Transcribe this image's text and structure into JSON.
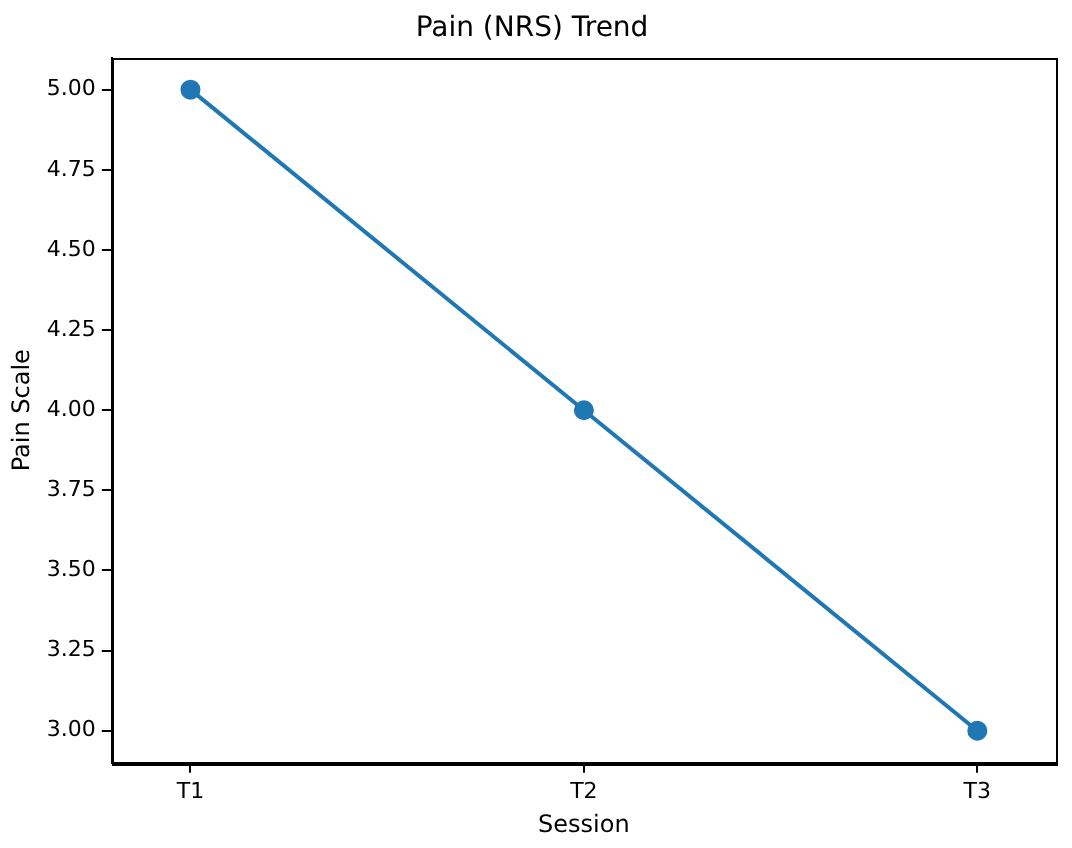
{
  "chart_data": {
    "type": "line",
    "title": "Pain (NRS) Trend",
    "xlabel": "Session",
    "ylabel": "Pain Scale",
    "categories": [
      "T1",
      "T2",
      "T3"
    ],
    "series": [
      {
        "color": "#1f77b4",
        "values": [
          5,
          4,
          3
        ]
      }
    ],
    "ylim": [
      2.9,
      5.1
    ],
    "yticks": [
      {
        "value": 3,
        "label": "3.00"
      },
      {
        "value": 3.25,
        "label": "3.25"
      },
      {
        "value": 3.5,
        "label": "3.50"
      },
      {
        "value": 3.75,
        "label": "3.75"
      },
      {
        "value": 4,
        "label": "4.00"
      },
      {
        "value": 4.25,
        "label": "4.25"
      },
      {
        "value": 4.5,
        "label": "4.50"
      },
      {
        "value": 4.75,
        "label": "4.75"
      },
      {
        "value": 5,
        "label": "5.00"
      }
    ],
    "grid": false,
    "legend": false,
    "marker": "circle",
    "line_style": "solid"
  }
}
